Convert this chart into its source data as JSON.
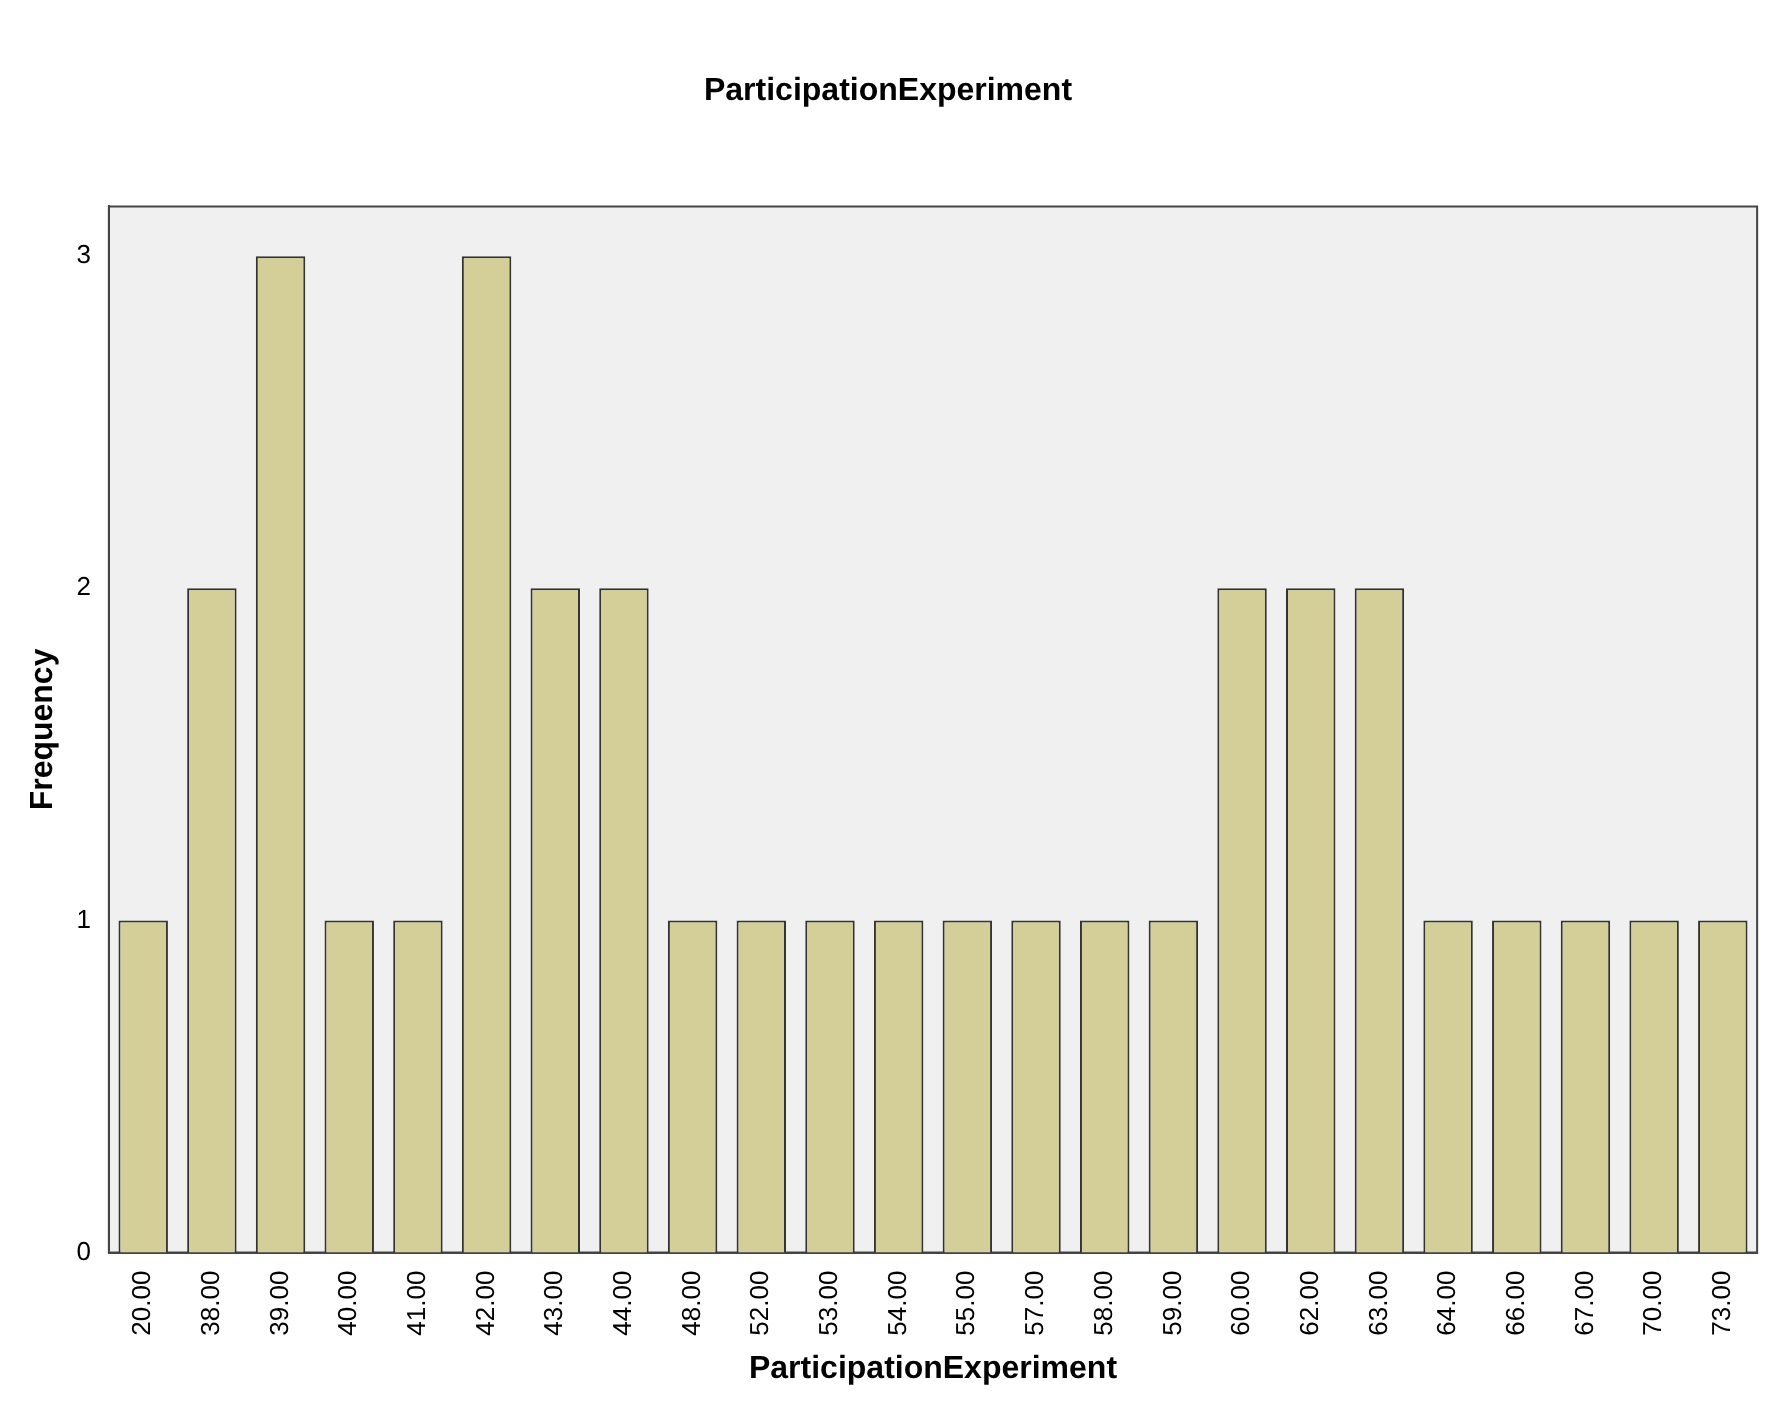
{
  "chart_data": {
    "type": "bar",
    "title": "ParticipationExperiment",
    "xlabel": "ParticipationExperiment",
    "ylabel": "Frequency",
    "categories": [
      "20.00",
      "38.00",
      "39.00",
      "40.00",
      "41.00",
      "42.00",
      "43.00",
      "44.00",
      "48.00",
      "52.00",
      "53.00",
      "54.00",
      "55.00",
      "57.00",
      "58.00",
      "59.00",
      "60.00",
      "62.00",
      "63.00",
      "64.00",
      "66.00",
      "67.00",
      "70.00",
      "73.00"
    ],
    "values": [
      1,
      2,
      3,
      1,
      1,
      3,
      2,
      2,
      1,
      1,
      1,
      1,
      1,
      1,
      1,
      1,
      2,
      2,
      2,
      1,
      1,
      1,
      1,
      1
    ],
    "color": "#d4cf98",
    "ylim": [
      0,
      3.15
    ],
    "yticks": [
      0,
      1,
      2,
      3
    ],
    "grid": false,
    "legend": false
  }
}
